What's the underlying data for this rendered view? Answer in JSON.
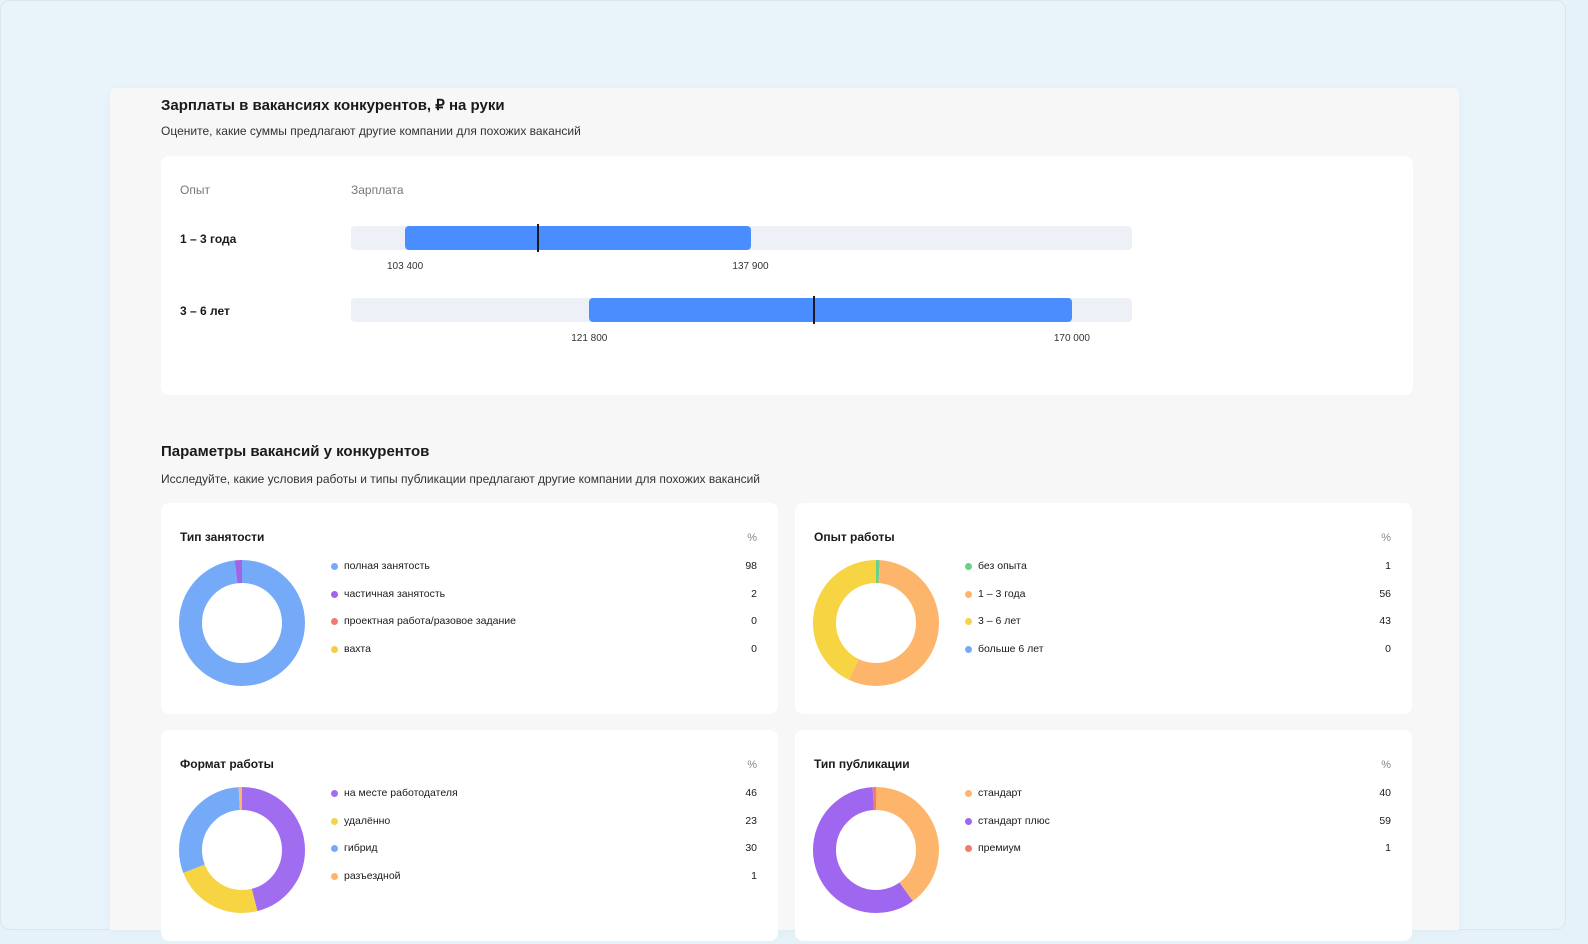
{
  "salary_section": {
    "title": "Зарплаты в вакансиях конкурентов, ₽ на руки",
    "subtitle": "Оцените, какие суммы предлагают другие компании для похожих вакансий",
    "col_experience": "Опыт",
    "col_salary": "Зарплата",
    "scale": {
      "min": 98000,
      "max": 176000
    },
    "rows": [
      {
        "label": "1 – 3 года",
        "low": 103400,
        "high": 137900,
        "median": 116700,
        "low_label": "103 400",
        "high_label": "137 900"
      },
      {
        "label": "3 – 6 лет",
        "low": 121800,
        "high": 170000,
        "median": 144200,
        "low_label": "121 800",
        "high_label": "170 000"
      }
    ]
  },
  "params_section": {
    "title": "Параметры вакансий у конкурентов",
    "subtitle": "Исследуйте, какие условия работы и типы публикации предлагают другие компании для похожих вакансий"
  },
  "donuts": [
    {
      "title": "Тип занятости",
      "pct_header": "%",
      "items": [
        {
          "name": "полная занятость",
          "value": "98",
          "pct": 98,
          "color": "#75aaf9"
        },
        {
          "name": "частичная занятость",
          "value": "2",
          "pct": 2,
          "color": "#a064e6"
        },
        {
          "name": "проектная работа/разовое задание",
          "value": "0",
          "pct": 0,
          "color": "#f47a6c"
        },
        {
          "name": "вахта",
          "value": "0",
          "pct": 0,
          "color": "#f6cd3f"
        }
      ]
    },
    {
      "title": "Опыт работы",
      "pct_header": "%",
      "items": [
        {
          "name": "без опыта",
          "value": "1",
          "pct": 1,
          "color": "#6ccf8a"
        },
        {
          "name": "1 – 3 года",
          "value": "56",
          "pct": 56,
          "color": "#fdb56b"
        },
        {
          "name": "3 – 6 лет",
          "value": "43",
          "pct": 43,
          "color": "#f6d442"
        },
        {
          "name": "больше 6 лет",
          "value": "0",
          "pct": 0,
          "color": "#75aaf9"
        }
      ]
    },
    {
      "title": "Формат работы",
      "pct_header": "%",
      "items": [
        {
          "name": "на месте работодателя",
          "value": "46",
          "pct": 46,
          "color": "#a06cf0"
        },
        {
          "name": "удалённо",
          "value": "23",
          "pct": 23,
          "color": "#f6d442"
        },
        {
          "name": "гибрид",
          "value": "30",
          "pct": 30,
          "color": "#75aaf9"
        },
        {
          "name": "разъездной",
          "value": "1",
          "pct": 1,
          "color": "#fdb56b"
        }
      ]
    },
    {
      "title": "Тип публикации",
      "pct_header": "%",
      "items": [
        {
          "name": "стандарт",
          "value": "40",
          "pct": 40,
          "color": "#fdb56b"
        },
        {
          "name": "стандарт плюс",
          "value": "59",
          "pct": 59,
          "color": "#9f66ef"
        },
        {
          "name": "премиум",
          "value": "1",
          "pct": 1,
          "color": "#f47a6c"
        }
      ]
    }
  ]
}
